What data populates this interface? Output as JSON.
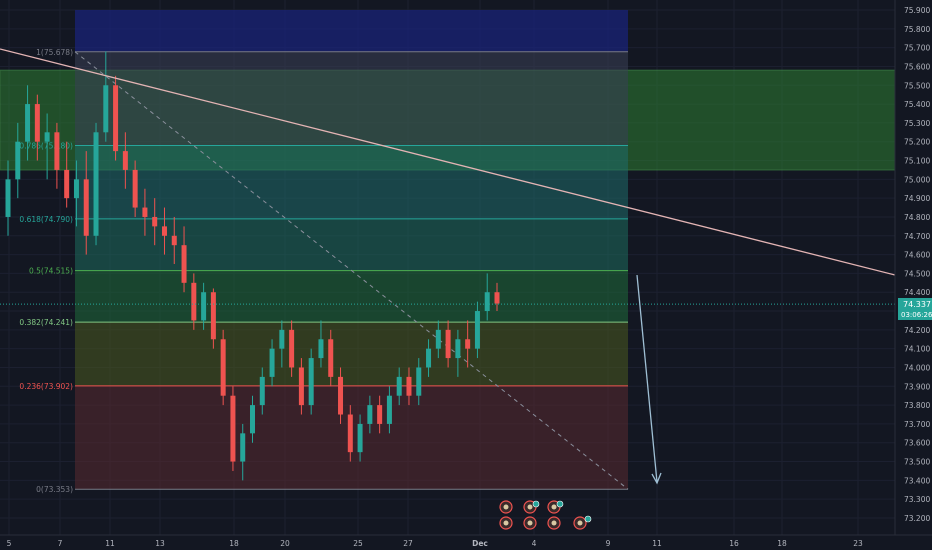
{
  "colors": {
    "background": "#131722",
    "grid": "#1e222d",
    "up": "#26a69a",
    "down": "#ef5350",
    "trendline": "#e3b4b4",
    "arrow": "#9fbfd4",
    "price_badge": "#26a69a"
  },
  "price_axis": {
    "labels": [
      "75.900",
      "75.800",
      "75.700",
      "75.600",
      "75.500",
      "75.400",
      "75.300",
      "75.200",
      "75.100",
      "75.000",
      "74.900",
      "74.800",
      "74.700",
      "74.600",
      "74.500",
      "74.400",
      "74.300",
      "74.200",
      "74.100",
      "74.000",
      "73.900",
      "73.800",
      "73.700",
      "73.600",
      "73.500",
      "73.400",
      "73.300",
      "73.200"
    ],
    "min": 73.2,
    "max": 75.9
  },
  "time_axis": {
    "labels": [
      "5",
      "7",
      "11",
      "13",
      "18",
      "20",
      "25",
      "27",
      "Dec",
      "4",
      "9",
      "11",
      "16",
      "18",
      "23"
    ]
  },
  "current_price": {
    "value": "74.337",
    "countdown": "03:06:26"
  },
  "fibonacci": {
    "levels": [
      {
        "label": "1(75.678)",
        "price": 75.678,
        "color": "#3a3f55",
        "line": "#787b86"
      },
      {
        "label": "0.786(75.180)",
        "price": 75.18,
        "color": "#1f6b6a",
        "line": "#26a69a"
      },
      {
        "label": "0.618(74.790)",
        "price": 74.79,
        "color": "#1e6b5c",
        "line": "#26a69a"
      },
      {
        "label": "0.5(74.515)",
        "price": 74.515,
        "color": "#1f6b3b",
        "line": "#4caf50"
      },
      {
        "label": "0.382(74.241)",
        "price": 74.241,
        "color": "#4a5a1f",
        "line": "#81c784"
      },
      {
        "label": "0.236(73.902)",
        "price": 73.902,
        "color": "#5a2a2f",
        "line": "#ef5350"
      },
      {
        "label": "0(73.353)",
        "price": 73.353,
        "color": "#5a2a2f",
        "line": "#787b86"
      }
    ]
  },
  "chart_data": {
    "type": "candlestick",
    "y_range": [
      73.2,
      75.9
    ],
    "top_zone": {
      "from": 75.68,
      "to": 75.9,
      "color": "#1a237e"
    },
    "resistance_zone": {
      "from": 75.05,
      "to": 75.58,
      "color": "#2e7d32"
    },
    "candles": [
      [
        74.8,
        75.1,
        74.7,
        75.0
      ],
      [
        75.0,
        75.3,
        74.9,
        75.2
      ],
      [
        75.2,
        75.5,
        75.1,
        75.4
      ],
      [
        75.4,
        75.45,
        75.1,
        75.2
      ],
      [
        75.2,
        75.35,
        75.0,
        75.25
      ],
      [
        75.25,
        75.3,
        74.95,
        75.05
      ],
      [
        75.05,
        75.2,
        74.85,
        74.9
      ],
      [
        74.9,
        75.1,
        74.75,
        75.0
      ],
      [
        75.0,
        75.15,
        74.6,
        74.7
      ],
      [
        74.7,
        75.3,
        74.65,
        75.25
      ],
      [
        75.25,
        75.68,
        75.2,
        75.5
      ],
      [
        75.5,
        75.55,
        75.1,
        75.15
      ],
      [
        75.15,
        75.25,
        74.95,
        75.05
      ],
      [
        75.05,
        75.1,
        74.8,
        74.85
      ],
      [
        74.85,
        74.95,
        74.7,
        74.8
      ],
      [
        74.8,
        74.9,
        74.65,
        74.75
      ],
      [
        74.75,
        74.85,
        74.6,
        74.7
      ],
      [
        74.7,
        74.8,
        74.55,
        74.65
      ],
      [
        74.65,
        74.75,
        74.4,
        74.45
      ],
      [
        74.45,
        74.5,
        74.2,
        74.25
      ],
      [
        74.25,
        74.45,
        74.2,
        74.4
      ],
      [
        74.4,
        74.42,
        74.1,
        74.15
      ],
      [
        74.15,
        74.2,
        73.8,
        73.85
      ],
      [
        73.85,
        73.9,
        73.45,
        73.5
      ],
      [
        73.5,
        73.7,
        73.4,
        73.65
      ],
      [
        73.65,
        73.85,
        73.6,
        73.8
      ],
      [
        73.8,
        74.0,
        73.75,
        73.95
      ],
      [
        73.95,
        74.15,
        73.9,
        74.1
      ],
      [
        74.1,
        74.25,
        74.0,
        74.2
      ],
      [
        74.2,
        74.25,
        73.95,
        74.0
      ],
      [
        74.0,
        74.05,
        73.75,
        73.8
      ],
      [
        73.8,
        74.1,
        73.75,
        74.05
      ],
      [
        74.05,
        74.25,
        74.0,
        74.15
      ],
      [
        74.15,
        74.2,
        73.9,
        73.95
      ],
      [
        73.95,
        74.0,
        73.7,
        73.75
      ],
      [
        73.75,
        73.8,
        73.5,
        73.55
      ],
      [
        73.55,
        73.75,
        73.5,
        73.7
      ],
      [
        73.7,
        73.85,
        73.65,
        73.8
      ],
      [
        73.8,
        73.85,
        73.65,
        73.7
      ],
      [
        73.7,
        73.9,
        73.65,
        73.85
      ],
      [
        73.85,
        74.0,
        73.8,
        73.95
      ],
      [
        73.95,
        74.0,
        73.8,
        73.85
      ],
      [
        73.85,
        74.05,
        73.8,
        74.0
      ],
      [
        74.0,
        74.15,
        73.95,
        74.1
      ],
      [
        74.1,
        74.25,
        74.05,
        74.2
      ],
      [
        74.2,
        74.25,
        74.0,
        74.05
      ],
      [
        74.05,
        74.2,
        73.95,
        74.15
      ],
      [
        74.15,
        74.25,
        74.0,
        74.1
      ],
      [
        74.1,
        74.35,
        74.05,
        74.3
      ],
      [
        74.3,
        74.5,
        74.25,
        74.4
      ],
      [
        74.4,
        74.45,
        74.3,
        74.34
      ]
    ]
  },
  "indicators": {
    "events": [
      "event-icon",
      "event-icon",
      "event-icon",
      "event-icon",
      "event-icon",
      "event-icon",
      "event-icon"
    ]
  }
}
